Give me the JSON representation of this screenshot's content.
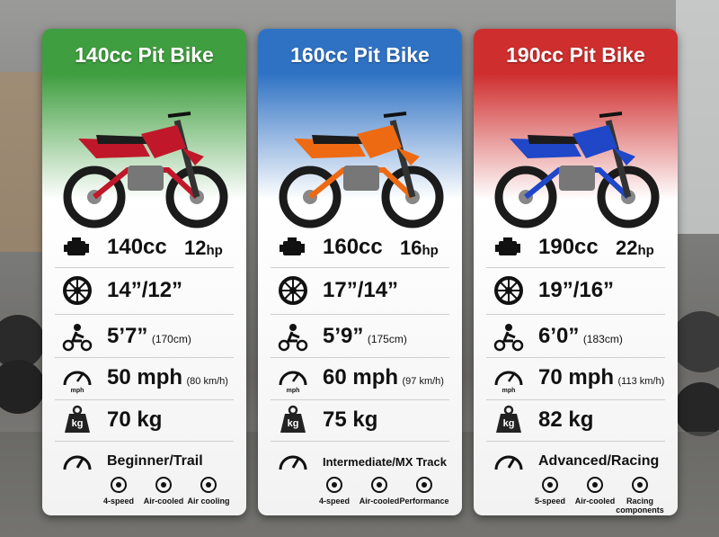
{
  "cards": [
    {
      "title": "140cc Pit Bike",
      "header_color": "#3f9e3f",
      "bike_color": "#c0182a",
      "displacement": "140cc",
      "power": "12",
      "power_unit": "hp",
      "wheels": "14”/12”",
      "rider_height": "5’7”",
      "rider_height_metric": "(170cm)",
      "top_speed": "50 mph",
      "top_speed_metric": "(80 km/h)",
      "weight": "70 kg",
      "level": "Beginner/Trail",
      "features": [
        "4-speed",
        "Air-cooled",
        "Air cooling"
      ]
    },
    {
      "title": "160cc Pit Bike",
      "header_color": "#2f72c4",
      "bike_color": "#ee6a12",
      "displacement": "160cc",
      "power": "16",
      "power_unit": "hp",
      "wheels": "17”/14”",
      "rider_height": "5’9”",
      "rider_height_metric": "(175cm)",
      "top_speed": "60 mph",
      "top_speed_metric": "(97 km/h)",
      "weight": "75 kg",
      "level": "Intermediate/MX Track",
      "features": [
        "4-speed",
        "Air-cooled",
        "Performance"
      ]
    },
    {
      "title": "190cc Pit Bike",
      "header_color": "#cf2e2e",
      "bike_color": "#1f47c8",
      "displacement": "190cc",
      "power": "22",
      "power_unit": "hp",
      "wheels": "19”/16”",
      "rider_height": "6’0”",
      "rider_height_metric": "(183cm)",
      "top_speed": "70 mph",
      "top_speed_metric": "(113 km/h)",
      "weight": "82 kg",
      "level": "Advanced/Racing",
      "features": [
        "5-speed",
        "Air-cooled",
        "Racing components"
      ]
    }
  ],
  "icon_labels": {
    "speedometer": "mph",
    "weight": "kg"
  }
}
